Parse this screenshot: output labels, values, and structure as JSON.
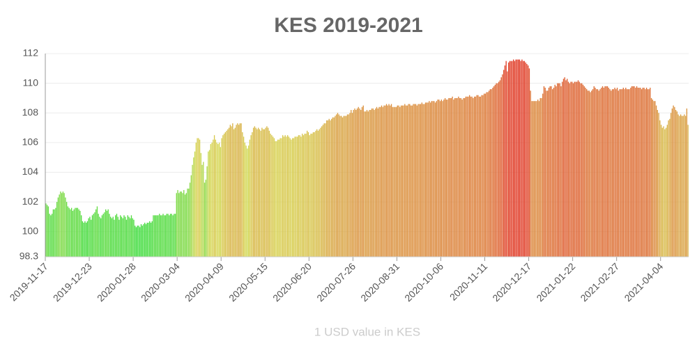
{
  "chart_data": {
    "type": "bar",
    "title": "KES 2019-2021",
    "x_label": "1 USD value in KES",
    "color_scale": [
      "#3ddc3d",
      "#d6d650",
      "#e03a26"
    ],
    "ylim": [
      98.3,
      112
    ],
    "yticks": [
      98.3,
      100,
      102,
      104,
      106,
      108,
      110,
      112
    ],
    "grid": true,
    "categories": [
      "2019-11-17",
      null,
      null,
      null,
      null,
      null,
      null,
      null,
      null,
      null,
      null,
      null,
      null,
      null,
      null,
      null,
      null,
      null,
      null,
      null,
      null,
      null,
      null,
      null,
      null,
      null,
      null,
      null,
      null,
      null,
      null,
      null,
      null,
      null,
      null,
      null,
      "2019-12-23",
      null,
      null,
      null,
      null,
      null,
      null,
      null,
      null,
      null,
      null,
      null,
      null,
      null,
      null,
      null,
      null,
      null,
      null,
      null,
      null,
      null,
      null,
      null,
      null,
      null,
      null,
      null,
      null,
      null,
      null,
      null,
      null,
      null,
      null,
      null,
      "2020-01-28",
      null,
      null,
      null,
      null,
      null,
      null,
      null,
      null,
      null,
      null,
      null,
      null,
      null,
      null,
      null,
      null,
      null,
      null,
      null,
      null,
      null,
      null,
      null,
      null,
      null,
      null,
      null,
      null,
      null,
      null,
      null,
      null,
      null,
      null,
      null,
      "2020-03-04",
      null,
      null,
      null,
      null,
      null,
      null,
      null,
      null,
      null,
      null,
      null,
      null,
      null,
      null,
      null,
      null,
      null,
      null,
      null,
      null,
      null,
      null,
      null,
      null,
      null,
      null,
      null,
      null,
      null,
      null,
      null,
      null,
      null,
      null,
      null,
      "2020-04-09",
      null,
      null,
      null,
      null,
      null,
      null,
      null,
      null,
      null,
      null,
      null,
      null,
      null,
      null,
      null,
      null,
      null,
      null,
      null,
      null,
      null,
      null,
      null,
      null,
      null,
      null,
      null,
      null,
      null,
      null,
      null,
      null,
      null,
      null,
      null,
      "2020-05-15",
      null,
      null,
      null,
      null,
      null,
      null,
      null,
      null,
      null,
      null,
      null,
      null,
      null,
      null,
      null,
      null,
      null,
      null,
      null,
      null,
      null,
      null,
      null,
      null,
      null,
      null,
      null,
      null,
      null,
      null,
      null,
      null,
      null,
      null,
      null,
      "2020-06-20",
      null,
      null,
      null,
      null,
      null,
      null,
      null,
      null,
      null,
      null,
      null,
      null,
      null,
      null,
      null,
      null,
      null,
      null,
      null,
      null,
      null,
      null,
      null,
      null,
      null,
      null,
      null,
      null,
      null,
      null,
      null,
      null,
      null,
      null,
      null,
      "2020-07-26",
      null,
      null,
      null,
      null,
      null,
      null,
      null,
      null,
      null,
      null,
      null,
      null,
      null,
      null,
      null,
      null,
      null,
      null,
      null,
      null,
      null,
      null,
      null,
      null,
      null,
      null,
      null,
      null,
      null,
      null,
      null,
      null,
      null,
      null,
      null,
      "2020-08-31",
      null,
      null,
      null,
      null,
      null,
      null,
      null,
      null,
      null,
      null,
      null,
      null,
      null,
      null,
      null,
      null,
      null,
      null,
      null,
      null,
      null,
      null,
      null,
      null,
      null,
      null,
      null,
      null,
      null,
      null,
      null,
      null,
      null,
      null,
      null,
      "2020-10-06",
      null,
      null,
      null,
      null,
      null,
      null,
      null,
      null,
      null,
      null,
      null,
      null,
      null,
      null,
      null,
      null,
      null,
      null,
      null,
      null,
      null,
      null,
      null,
      null,
      null,
      null,
      null,
      null,
      null,
      null,
      null,
      null,
      null,
      null,
      null,
      "2020-11-11",
      null,
      null,
      null,
      null,
      null,
      null,
      null,
      null,
      null,
      null,
      null,
      null,
      null,
      null,
      null,
      null,
      null,
      null,
      null,
      null,
      null,
      null,
      null,
      null,
      null,
      null,
      null,
      null,
      null,
      null,
      null,
      null,
      null,
      null,
      null,
      "2020-12-17",
      null,
      null,
      null,
      null,
      null,
      null,
      null,
      null,
      null,
      null,
      null,
      null,
      null,
      null,
      null,
      null,
      null,
      null,
      null,
      null,
      null,
      null,
      null,
      null,
      null,
      null,
      null,
      null,
      null,
      null,
      null,
      null,
      null,
      null,
      null,
      "2021-01-22",
      null,
      null,
      null,
      null,
      null,
      null,
      null,
      null,
      null,
      null,
      null,
      null,
      null,
      null,
      null,
      null,
      null,
      null,
      null,
      null,
      null,
      null,
      null,
      null,
      null,
      null,
      null,
      null,
      null,
      null,
      null,
      null,
      null,
      null,
      null,
      "2021-02-27",
      null,
      null,
      null,
      null,
      null,
      null,
      null,
      null,
      null,
      null,
      null,
      null,
      null,
      null,
      null,
      null,
      null,
      null,
      null,
      null,
      null,
      null,
      null,
      null,
      null,
      null,
      null,
      null,
      null,
      null,
      null,
      null,
      null,
      null,
      null,
      "2021-04-04",
      null,
      null,
      null,
      null,
      null,
      null,
      null,
      null,
      null,
      null,
      null,
      null,
      null,
      null,
      null,
      null,
      null,
      null,
      null,
      null,
      null,
      null
    ],
    "values": [
      101.9,
      101.8,
      101.7,
      101.2,
      101.1,
      101.2,
      101.5,
      101.5,
      101.6,
      102.0,
      102.3,
      102.5,
      102.7,
      102.6,
      102.7,
      102.6,
      102.3,
      102.0,
      101.7,
      101.6,
      101.5,
      101.6,
      101.4,
      101.5,
      101.6,
      101.6,
      101.6,
      101.5,
      101.4,
      101.1,
      100.7,
      100.6,
      100.7,
      100.6,
      100.7,
      100.9,
      101.0,
      100.8,
      101.1,
      101.2,
      101.3,
      101.5,
      101.7,
      101.2,
      101.0,
      100.9,
      101.1,
      101.2,
      101.3,
      101.5,
      101.4,
      101.5,
      101.2,
      101.0,
      100.9,
      101.0,
      100.8,
      101.1,
      101.2,
      101.0,
      100.8,
      101.1,
      101.0,
      100.9,
      101.1,
      101.0,
      100.8,
      101.1,
      101.0,
      100.9,
      101.1,
      100.9,
      100.8,
      100.4,
      100.3,
      100.4,
      100.4,
      100.3,
      100.5,
      100.4,
      100.5,
      100.6,
      100.5,
      100.6,
      100.6,
      100.7,
      100.6,
      100.7,
      101.1,
      101.1,
      101.1,
      101.1,
      101.1,
      101.2,
      101.1,
      101.1,
      101.2,
      101.1,
      101.1,
      101.2,
      101.2,
      101.1,
      101.2,
      101.2,
      101.1,
      101.2,
      101.2,
      102.6,
      102.8,
      102.6,
      102.7,
      102.7,
      102.6,
      102.8,
      102.5,
      102.6,
      102.9,
      102.9,
      103.3,
      103.8,
      104.5,
      105.0,
      105.4,
      106.0,
      106.3,
      106.3,
      106.2,
      105.3,
      104.5,
      104.7,
      103.3,
      103.5,
      104.4,
      105.4,
      105.5,
      105.9,
      106.0,
      106.2,
      106.5,
      106.2,
      106.0,
      105.9,
      106.0,
      105.7,
      106.3,
      106.5,
      106.6,
      106.7,
      106.8,
      106.9,
      107.0,
      107.2,
      107.1,
      107.3,
      106.9,
      107.0,
      107.2,
      107.3,
      107.2,
      107.3,
      107.3,
      106.7,
      106.4,
      106.0,
      105.8,
      105.6,
      105.8,
      106.2,
      106.5,
      106.7,
      107.0,
      107.1,
      107.0,
      106.9,
      107.0,
      106.9,
      106.8,
      107.0,
      106.9,
      106.9,
      107.0,
      107.1,
      107.0,
      106.8,
      106.6,
      106.5,
      106.4,
      106.3,
      106.1,
      106.1,
      106.2,
      106.2,
      106.3,
      106.3,
      106.5,
      106.4,
      106.5,
      106.4,
      106.5,
      106.4,
      106.3,
      106.2,
      106.3,
      106.3,
      106.4,
      106.4,
      106.4,
      106.5,
      106.5,
      106.4,
      106.6,
      106.5,
      106.6,
      106.6,
      106.8,
      106.7,
      106.5,
      106.6,
      106.6,
      106.7,
      106.7,
      106.8,
      106.9,
      106.8,
      106.9,
      107.0,
      107.1,
      107.2,
      107.3,
      107.3,
      107.5,
      107.5,
      107.6,
      107.5,
      107.6,
      107.7,
      107.7,
      107.8,
      107.9,
      108.0,
      107.9,
      107.8,
      107.8,
      107.7,
      107.8,
      107.8,
      107.8,
      107.9,
      107.9,
      108.0,
      108.2,
      108.0,
      108.2,
      108.3,
      108.2,
      108.3,
      108.4,
      108.3,
      108.2,
      108.4,
      108.5,
      108.1,
      108.1,
      108.2,
      108.1,
      108.2,
      108.2,
      108.3,
      108.3,
      108.2,
      108.3,
      108.4,
      108.3,
      108.4,
      108.4,
      108.5,
      108.4,
      108.5,
      108.5,
      108.6,
      108.5,
      108.6,
      108.5,
      108.6,
      108.4,
      108.4,
      108.4,
      108.4,
      108.5,
      108.5,
      108.4,
      108.5,
      108.5,
      108.5,
      108.6,
      108.5,
      108.5,
      108.6,
      108.6,
      108.5,
      108.5,
      108.6,
      108.6,
      108.6,
      108.5,
      108.6,
      108.6,
      108.6,
      108.7,
      108.6,
      108.6,
      108.7,
      108.7,
      108.7,
      108.8,
      108.7,
      108.8,
      108.8,
      108.8,
      108.7,
      108.8,
      108.9,
      108.9,
      108.8,
      108.9,
      108.8,
      108.9,
      109.0,
      108.9,
      108.9,
      109.0,
      109.0,
      109.0,
      109.1,
      108.9,
      109.0,
      109.0,
      109.0,
      109.1,
      109.0,
      109.0,
      108.9,
      109.0,
      109.0,
      109.1,
      109.1,
      109.1,
      109.2,
      109.1,
      109.1,
      109.0,
      109.1,
      109.1,
      109.2,
      109.2,
      109.1,
      109.1,
      109.2,
      109.2,
      109.3,
      109.3,
      109.4,
      109.4,
      109.5,
      109.6,
      109.6,
      109.7,
      109.8,
      109.9,
      110.0,
      110.0,
      110.1,
      110.2,
      110.4,
      110.6,
      110.9,
      111.2,
      111.5,
      110.8,
      111.4,
      111.5,
      111.5,
      111.5,
      111.6,
      111.5,
      111.6,
      111.6,
      111.6,
      111.6,
      111.5,
      111.6,
      111.5,
      111.5,
      111.4,
      111.3,
      111.2,
      111.0,
      109.5,
      108.8,
      108.8,
      108.8,
      108.8,
      108.8,
      108.9,
      108.8,
      109.0,
      109.0,
      109.3,
      109.8,
      109.7,
      109.5,
      109.5,
      109.7,
      109.8,
      109.8,
      109.6,
      109.7,
      109.9,
      109.8,
      110.0,
      110.0,
      110.0,
      109.8,
      110.1,
      110.3,
      110.4,
      110.2,
      110.3,
      110.1,
      110.0,
      110.1,
      110.1,
      110.0,
      110.1,
      110.1,
      110.1,
      110.2,
      110.1,
      110.0,
      110.0,
      109.9,
      109.8,
      109.7,
      109.6,
      109.5,
      109.5,
      109.4,
      109.5,
      109.6,
      109.8,
      109.7,
      109.6,
      109.6,
      109.5,
      109.6,
      109.7,
      109.8,
      109.7,
      109.8,
      109.8,
      109.8,
      109.7,
      109.6,
      109.5,
      109.6,
      109.6,
      109.7,
      109.6,
      109.7,
      109.5,
      109.6,
      109.6,
      109.6,
      109.7,
      109.6,
      109.7,
      109.6,
      109.6,
      109.6,
      109.7,
      109.8,
      109.8,
      109.8,
      109.7,
      109.8,
      109.7,
      109.7,
      109.7,
      109.6,
      109.7,
      109.7,
      109.6,
      109.7,
      109.6,
      109.6,
      109.7,
      109.0,
      108.9,
      108.8,
      108.8,
      108.5,
      108.2,
      108.0,
      107.5,
      107.2,
      107.0,
      107.1,
      106.9,
      107.0,
      107.2,
      107.5,
      107.6,
      108.0,
      108.3,
      108.5,
      108.4,
      108.2,
      108.1,
      107.9,
      107.8,
      107.9,
      107.8,
      107.8,
      107.9,
      107.8,
      108.3,
      107.2
    ]
  }
}
